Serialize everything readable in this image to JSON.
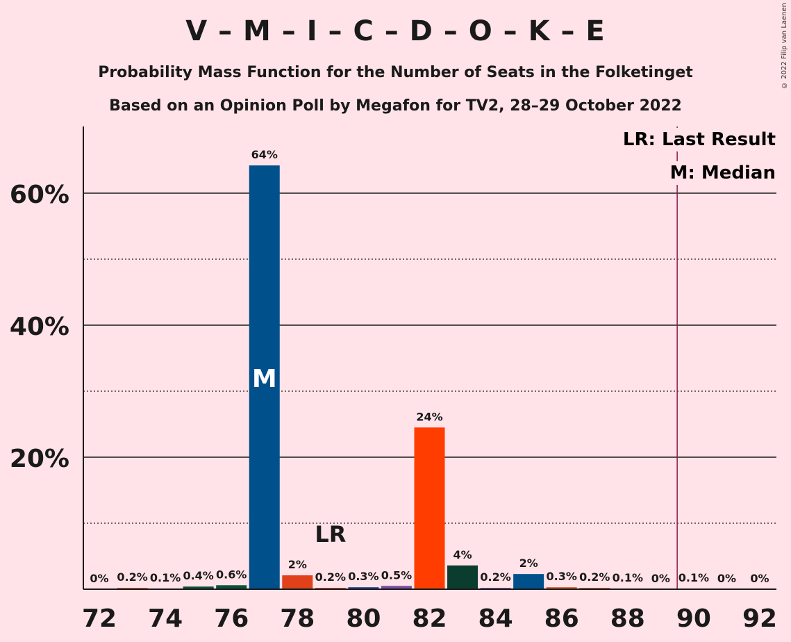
{
  "title": "V – M – I – C – D – O – K – E",
  "subtitle1": "Probability Mass Function for the Number of Seats in the Folketinget",
  "subtitle2": "Based on an Opinion Poll by Megafon for TV2, 28–29 October 2022",
  "copyright": "© 2022 Filip van Laenen",
  "legend": {
    "last_result": "LR: Last Result",
    "median": "M: Median"
  },
  "markers": {
    "median_label": "M",
    "last_result_label": "LR"
  },
  "colors": {
    "background": "#FFE3E8",
    "last_result_line": "#8B1A4A",
    "text": "#1a1a1a"
  },
  "chart_data": {
    "type": "bar",
    "xlabel": "",
    "ylabel": "",
    "ylim": [
      0,
      70
    ],
    "yticks": [
      20,
      40,
      60
    ],
    "ytick_labels": [
      "20%",
      "40%",
      "60%"
    ],
    "y_dotted_gridlines": [
      10,
      30,
      50
    ],
    "xticks": [
      72,
      74,
      76,
      78,
      80,
      82,
      84,
      86,
      88,
      90,
      92
    ],
    "median_seat": 77,
    "last_result_seat": 89.5,
    "lr_label_seat": 79,
    "bars": [
      {
        "seat": 72,
        "value": 0.0,
        "label": "0%",
        "color": "#0B4F3A"
      },
      {
        "seat": 73,
        "value": 0.2,
        "label": "0.2%",
        "color": "#E0562C"
      },
      {
        "seat": 74,
        "value": 0.1,
        "label": "0.1%",
        "color": "#E0562C"
      },
      {
        "seat": 75,
        "value": 0.4,
        "label": "0.4%",
        "color": "#0B4F3A"
      },
      {
        "seat": 76,
        "value": 0.6,
        "label": "0.6%",
        "color": "#0B4F3A"
      },
      {
        "seat": 77,
        "value": 64.2,
        "label": "64%",
        "color": "#00508C"
      },
      {
        "seat": 78,
        "value": 2.1,
        "label": "2%",
        "color": "#E0401A"
      },
      {
        "seat": 79,
        "value": 0.2,
        "label": "0.2%",
        "color": "#E0401A"
      },
      {
        "seat": 80,
        "value": 0.3,
        "label": "0.3%",
        "color": "#27448F"
      },
      {
        "seat": 81,
        "value": 0.5,
        "label": "0.5%",
        "color": "#7A4DA0"
      },
      {
        "seat": 82,
        "value": 24.5,
        "label": "24%",
        "color": "#FF3D00"
      },
      {
        "seat": 83,
        "value": 3.6,
        "label": "4%",
        "color": "#0A3D2E"
      },
      {
        "seat": 84,
        "value": 0.2,
        "label": "0.2%",
        "color": "#7A4DA0"
      },
      {
        "seat": 85,
        "value": 2.3,
        "label": "2%",
        "color": "#00508C"
      },
      {
        "seat": 86,
        "value": 0.3,
        "label": "0.3%",
        "color": "#E0562C"
      },
      {
        "seat": 87,
        "value": 0.2,
        "label": "0.2%",
        "color": "#E0562C"
      },
      {
        "seat": 88,
        "value": 0.1,
        "label": "0.1%",
        "color": "#E0562C"
      },
      {
        "seat": 89,
        "value": 0.0,
        "label": "0%",
        "color": "#E0562C"
      },
      {
        "seat": 90,
        "value": 0.1,
        "label": "0.1%",
        "color": "#E0562C"
      },
      {
        "seat": 91,
        "value": 0.0,
        "label": "0%",
        "color": "#E0562C"
      },
      {
        "seat": 92,
        "value": 0.0,
        "label": "0%",
        "color": "#E0562C"
      }
    ]
  }
}
